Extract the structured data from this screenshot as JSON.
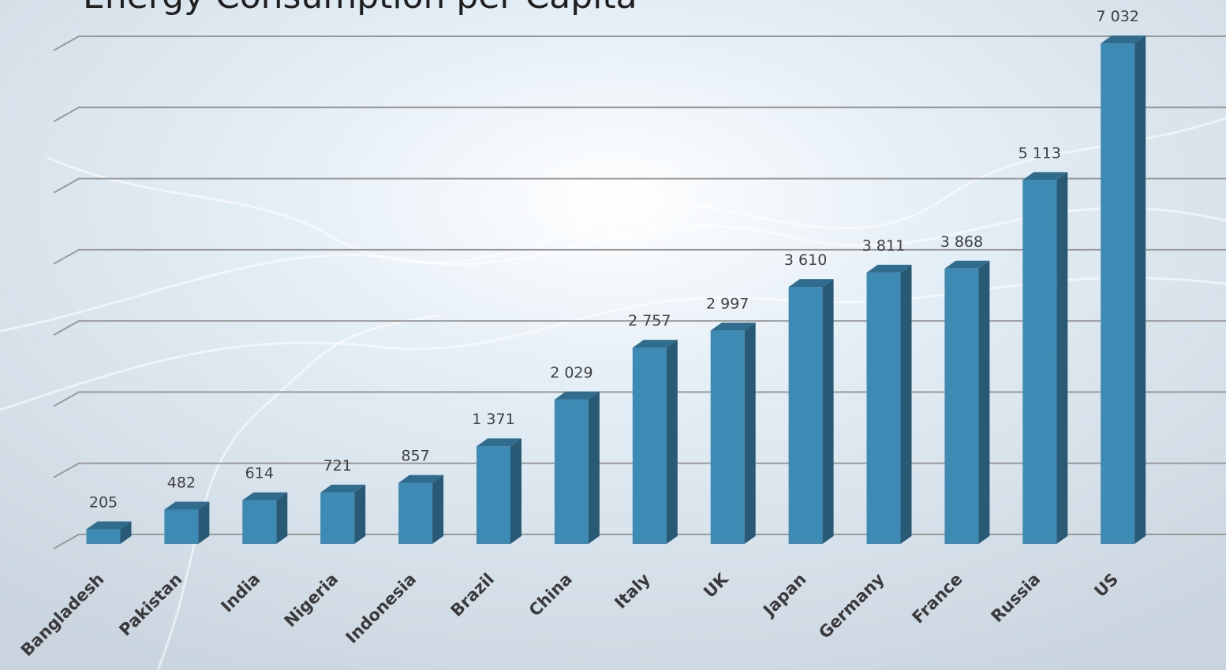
{
  "chart_data": {
    "type": "bar3d",
    "title": "Energy Consumption per Capita",
    "categories": [
      "Bangladesh",
      "Pakistan",
      "India",
      "Nigeria",
      "Indonesia",
      "Brazil",
      "China",
      "Italy",
      "UK",
      "Japan",
      "Germany",
      "France",
      "Russia",
      "US"
    ],
    "values": [
      205,
      482,
      614,
      721,
      857,
      1371,
      2029,
      2757,
      2997,
      3610,
      3811,
      3868,
      5113,
      7032
    ],
    "value_labels": [
      "205",
      "482",
      "614",
      "721",
      "857",
      "1 371",
      "2 029",
      "2 757",
      "2 997",
      "3 610",
      "3 811",
      "3 868",
      "5 113",
      "7 032"
    ],
    "color": "#3d8ab5",
    "ylim": [
      0,
      7100
    ],
    "yticks": [
      0,
      1000,
      2000,
      3000,
      4000,
      5000,
      6000,
      7000
    ],
    "grid": true
  }
}
